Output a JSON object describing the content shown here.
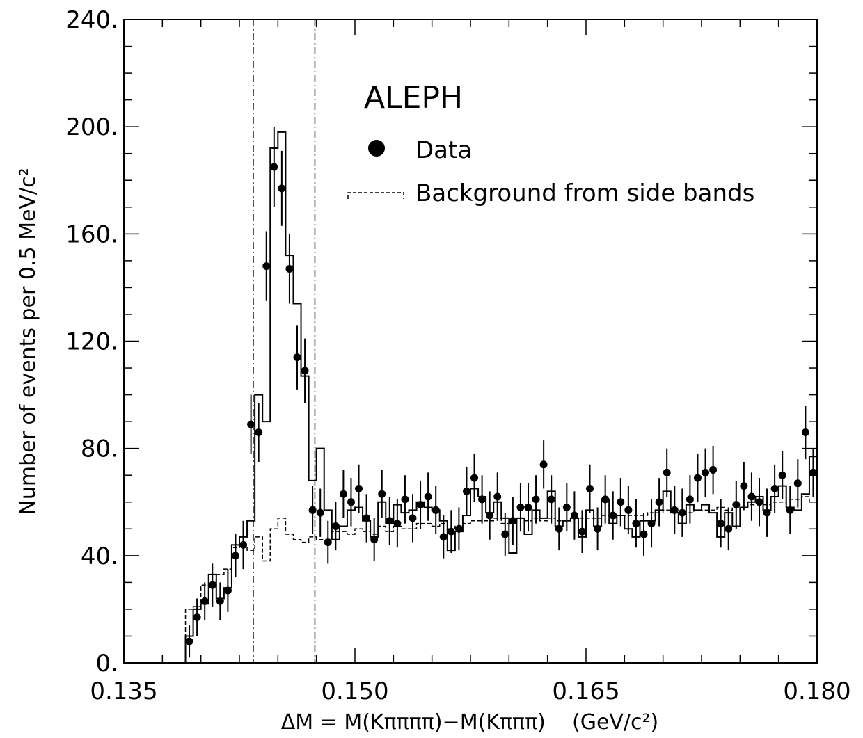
{
  "chart_data": {
    "type": "histogram",
    "experiment_label": "ALEPH",
    "xlabel": "ΔM = M(Kππππ)−M(Kπππ)    (GeV/c²)",
    "ylabel": "Number of events per 0.5 MeV/c²",
    "xlim": [
      0.135,
      0.18
    ],
    "ylim": [
      0,
      240
    ],
    "x_ticks": [
      0.135,
      0.15,
      0.165,
      0.18
    ],
    "x_tick_labels": [
      "0.135",
      "0.150",
      "0.165",
      "0.180"
    ],
    "y_ticks": [
      0,
      40,
      80,
      120,
      160,
      200,
      240
    ],
    "y_tick_labels": [
      "0.",
      "40.",
      "80.",
      "120.",
      "160.",
      "200.",
      "240."
    ],
    "bin_width": 0.0005,
    "legend": [
      {
        "label": "Data",
        "marker": "filled-circle"
      },
      {
        "label": "Background from side bands",
        "style": "dashed"
      }
    ],
    "vertical_lines": [
      0.1434,
      0.1474
    ],
    "data_points": {
      "name": "Data",
      "x": [
        0.13925,
        0.13975,
        0.14025,
        0.14075,
        0.14125,
        0.14175,
        0.14225,
        0.14275,
        0.14325,
        0.14375,
        0.14425,
        0.14475,
        0.14525,
        0.14575,
        0.14625,
        0.14675,
        0.14725,
        0.14775,
        0.14825,
        0.14875,
        0.14925,
        0.14975,
        0.15025,
        0.15075,
        0.15125,
        0.15175,
        0.15225,
        0.15275,
        0.15325,
        0.15375,
        0.15425,
        0.15475,
        0.15525,
        0.15575,
        0.15625,
        0.15675,
        0.15725,
        0.15775,
        0.15825,
        0.15875,
        0.15925,
        0.15975,
        0.16025,
        0.16075,
        0.16125,
        0.16175,
        0.16225,
        0.16275,
        0.16325,
        0.16375,
        0.16425,
        0.16475,
        0.16525,
        0.16575,
        0.16625,
        0.16675,
        0.16725,
        0.16775,
        0.16825,
        0.16875,
        0.16925,
        0.16975,
        0.17025,
        0.17075,
        0.17125,
        0.17175,
        0.17225,
        0.17275,
        0.17325,
        0.17375,
        0.17425,
        0.17475,
        0.17525,
        0.17575,
        0.17625,
        0.17675,
        0.17725,
        0.17775,
        0.17825,
        0.17875,
        0.17925,
        0.17975
      ],
      "y": [
        8,
        17,
        23,
        29,
        23,
        27,
        40,
        44,
        89,
        86,
        148,
        185,
        177,
        147,
        114,
        109,
        57,
        56,
        45,
        51,
        63,
        60,
        65,
        54,
        46,
        63,
        53,
        52,
        61,
        54,
        59,
        62,
        57,
        47,
        49,
        50,
        64,
        69,
        61,
        55,
        62,
        48,
        53,
        58,
        58,
        61,
        74,
        61,
        50,
        58,
        55,
        49,
        65,
        50,
        61,
        55,
        60,
        57,
        52,
        48,
        52,
        60,
        71,
        57,
        56,
        61,
        69,
        71,
        72,
        52,
        50,
        59,
        66,
        62,
        60,
        56,
        65,
        70,
        57,
        67,
        86,
        71
      ],
      "err": [
        6,
        7,
        7,
        8,
        7,
        8,
        8,
        9,
        11,
        11,
        13,
        15,
        14,
        13,
        12,
        12,
        9,
        9,
        8,
        9,
        9,
        9,
        9,
        9,
        8,
        9,
        9,
        9,
        9,
        9,
        9,
        9,
        9,
        8,
        8,
        8,
        9,
        9,
        9,
        9,
        9,
        8,
        9,
        9,
        9,
        9,
        9,
        9,
        8,
        9,
        9,
        8,
        9,
        8,
        9,
        9,
        9,
        9,
        9,
        8,
        9,
        9,
        9,
        9,
        9,
        9,
        9,
        9,
        9,
        9,
        8,
        9,
        9,
        9,
        9,
        9,
        9,
        9,
        9,
        9,
        10,
        9
      ]
    },
    "total_histogram": {
      "x_edges_start": 0.139,
      "values": [
        10,
        20,
        22,
        33,
        24,
        28,
        44,
        47,
        53,
        100,
        90,
        192,
        198,
        152,
        134,
        107,
        68,
        80,
        57,
        46,
        51,
        57,
        58,
        53,
        47,
        60,
        52,
        59,
        56,
        57,
        60,
        58,
        57,
        53,
        42,
        49,
        55,
        65,
        62,
        56,
        60,
        54,
        41,
        54,
        48,
        57,
        54,
        64,
        51,
        53,
        54,
        47,
        57,
        51,
        61,
        52,
        55,
        50,
        47,
        53,
        53,
        57,
        64,
        56,
        52,
        59,
        57,
        59,
        56,
        47,
        56,
        51,
        58,
        60,
        62,
        57,
        62,
        66,
        58,
        57,
        63,
        77
      ]
    },
    "background_histogram": {
      "x_edges_start": 0.139,
      "values": [
        20,
        21,
        29,
        30,
        33,
        35,
        43,
        44,
        42,
        47,
        38,
        50,
        54,
        48,
        46,
        45,
        47,
        46,
        46,
        49,
        49,
        48,
        50,
        49,
        48,
        51,
        49,
        51,
        50,
        50,
        52,
        52,
        51,
        52,
        50,
        51,
        52,
        53,
        53,
        53,
        54,
        52,
        52,
        54,
        53,
        54,
        53,
        54,
        53,
        53,
        54,
        54,
        54,
        54,
        55,
        54,
        55,
        55,
        55,
        55,
        56,
        56,
        57,
        56,
        56,
        56,
        57,
        57,
        57,
        58,
        57,
        58,
        58,
        59,
        59,
        59,
        60,
        60,
        61,
        61,
        62,
        60
      ]
    }
  }
}
